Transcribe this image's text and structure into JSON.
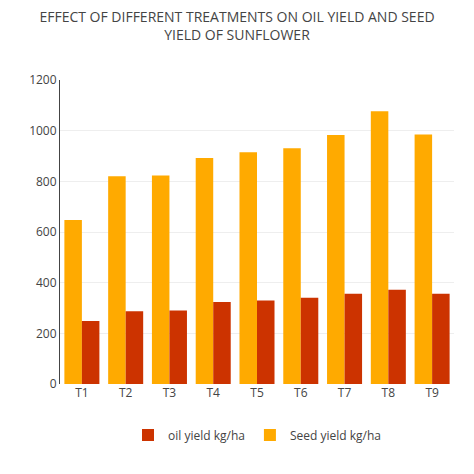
{
  "chart_data": {
    "type": "bar",
    "title": "EFFECT OF DIFFERENT TREATMENTS ON OIL YIELD AND SEED\nYIELD OF SUNFLOWER",
    "categories": [
      "T1",
      "T2",
      "T3",
      "T4",
      "T5",
      "T6",
      "T7",
      "T8",
      "T9"
    ],
    "series": [
      {
        "name": "Seed yield kg/ha",
        "color": "#FFAA00",
        "values": [
          647,
          820,
          823,
          892,
          915,
          931,
          983,
          1077,
          985
        ]
      },
      {
        "name": "oil yield kg/ha",
        "color": "#CC3300",
        "values": [
          249,
          287,
          290,
          324,
          330,
          340,
          356,
          372,
          356
        ]
      }
    ],
    "ylim": [
      0,
      1200
    ],
    "yticks": [
      0,
      200,
      400,
      600,
      800,
      1000,
      1200
    ],
    "grid": true,
    "legend": "bottom"
  }
}
